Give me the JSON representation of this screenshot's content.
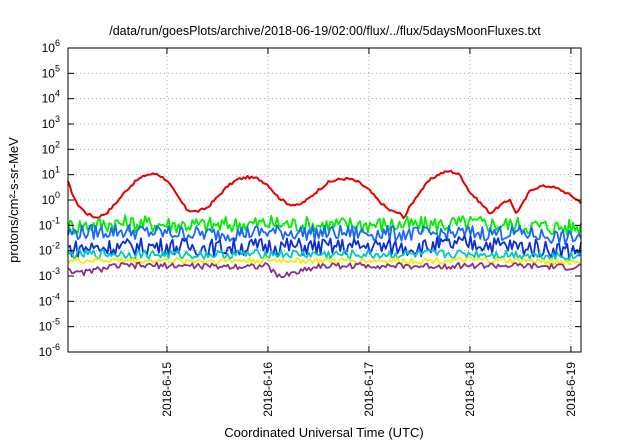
{
  "chart_data": {
    "type": "line",
    "title": "/data/run/goesPlots/archive/2018-06-19/02:00/flux/../flux/5daysMoonFluxes.txt",
    "xlabel": "Coordinated Universal Time (UTC)",
    "ylabel": "protons/cm²-s-sr-MeV",
    "y_scale": "log",
    "ylim_exponents": [
      -6,
      6
    ],
    "xlim_days": [
      14.02,
      19.1
    ],
    "x_ticks": [
      {
        "day": 15,
        "label": "2018-6-15"
      },
      {
        "day": 16,
        "label": "2018-6-16"
      },
      {
        "day": 17,
        "label": "2018-6-17"
      },
      {
        "day": 18,
        "label": "2018-6-18"
      },
      {
        "day": 19,
        "label": "2018-6-19"
      }
    ],
    "y_ticks": [
      {
        "exp": 6,
        "label": "6"
      },
      {
        "exp": 5,
        "label": "5"
      },
      {
        "exp": 4,
        "label": "4"
      },
      {
        "exp": 3,
        "label": "3"
      },
      {
        "exp": 2,
        "label": "2"
      },
      {
        "exp": 1,
        "label": "1"
      },
      {
        "exp": 0,
        "label": "0"
      },
      {
        "exp": -1,
        "label": "-1"
      },
      {
        "exp": -2,
        "label": "-2"
      },
      {
        "exp": -3,
        "label": "-3"
      },
      {
        "exp": -4,
        "label": "-4"
      },
      {
        "exp": -5,
        "label": "-5"
      },
      {
        "exp": -6,
        "label": "-6"
      }
    ],
    "grid": true,
    "series": [
      {
        "color": "#e60000",
        "x": [
          14.02,
          14.1,
          14.2,
          14.3,
          14.4,
          14.5,
          14.6,
          14.7,
          14.8,
          14.9,
          15.0,
          15.1,
          15.2,
          15.3,
          15.4,
          15.5,
          15.6,
          15.7,
          15.8,
          15.9,
          16.0,
          16.1,
          16.2,
          16.3,
          16.4,
          16.5,
          16.6,
          16.7,
          16.8,
          16.9,
          17.0,
          17.1,
          17.2,
          17.3,
          17.35,
          17.4,
          17.5,
          17.6,
          17.7,
          17.8,
          17.9,
          18.0,
          18.1,
          18.2,
          18.3,
          18.4,
          18.45,
          18.5,
          18.6,
          18.7,
          18.8,
          18.9,
          19.0,
          19.1
        ],
        "y": [
          5,
          0.8,
          0.3,
          0.2,
          0.3,
          0.8,
          2.5,
          6,
          10,
          11,
          6,
          1.5,
          0.4,
          0.35,
          0.5,
          1.3,
          3.5,
          6.5,
          8,
          7,
          4,
          1.3,
          0.7,
          0.6,
          1.1,
          2.5,
          5,
          6.5,
          7,
          5,
          2.5,
          0.9,
          0.4,
          0.3,
          0.2,
          0.5,
          2,
          6,
          11,
          14,
          10,
          2,
          0.8,
          0.3,
          0.6,
          1.1,
          0.3,
          0.5,
          2.5,
          3.5,
          3.5,
          2.5,
          1.5,
          0.8
        ]
      },
      {
        "color": "#00ee00",
        "x": [
          14.02,
          14.5,
          15.0,
          15.5,
          16.0,
          16.5,
          17.0,
          17.5,
          18.0,
          18.5,
          19.0,
          19.1
        ],
        "y": [
          0.09,
          0.12,
          0.11,
          0.1,
          0.12,
          0.1,
          0.11,
          0.1,
          0.12,
          0.1,
          0.08,
          0.09
        ]
      },
      {
        "color": "#1a66ff",
        "x": [
          14.02,
          14.5,
          15.0,
          15.5,
          16.0,
          16.5,
          17.0,
          17.5,
          18.0,
          18.5,
          19.0,
          19.1
        ],
        "y": [
          0.05,
          0.06,
          0.05,
          0.045,
          0.055,
          0.05,
          0.05,
          0.045,
          0.05,
          0.05,
          0.03,
          0.04
        ]
      },
      {
        "color": "#0a2fd6",
        "x": [
          14.02,
          14.5,
          15.0,
          15.5,
          16.0,
          16.5,
          17.0,
          17.5,
          18.0,
          18.5,
          19.0,
          19.1
        ],
        "y": [
          0.012,
          0.014,
          0.015,
          0.013,
          0.015,
          0.014,
          0.015,
          0.013,
          0.02,
          0.014,
          0.01,
          0.011
        ]
      },
      {
        "color": "#00c8c8",
        "x": [
          14.02,
          14.5,
          15.0,
          15.5,
          16.0,
          16.5,
          17.0,
          17.5,
          18.0,
          18.5,
          19.0,
          19.1
        ],
        "y": [
          0.007,
          0.0075,
          0.007,
          0.007,
          0.0075,
          0.007,
          0.007,
          0.007,
          0.0075,
          0.007,
          0.006,
          0.0065
        ]
      },
      {
        "color": "#f0f000",
        "x": [
          14.02,
          14.5,
          15.0,
          15.5,
          16.0,
          16.5,
          17.0,
          17.5,
          18.0,
          18.5,
          19.0,
          19.1
        ],
        "y": [
          0.004,
          0.0042,
          0.004,
          0.004,
          0.0042,
          0.004,
          0.004,
          0.004,
          0.0042,
          0.004,
          0.0035,
          0.0038
        ]
      },
      {
        "color": "#8b2f8b",
        "x": [
          14.02,
          14.1,
          14.5,
          15.0,
          15.5,
          16.0,
          16.1,
          16.5,
          17.0,
          17.5,
          18.0,
          18.5,
          19.0,
          19.1
        ],
        "y": [
          0.0022,
          0.0012,
          0.0025,
          0.0026,
          0.0024,
          0.0025,
          0.0009,
          0.0025,
          0.0026,
          0.0024,
          0.0026,
          0.0025,
          0.0022,
          0.0024
        ]
      }
    ]
  }
}
